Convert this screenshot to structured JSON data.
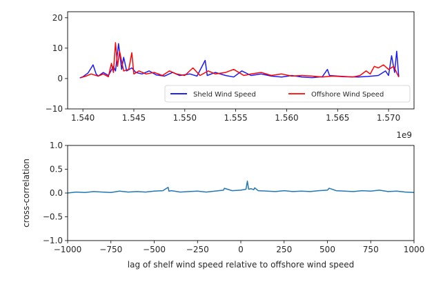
{
  "chart_data": [
    {
      "type": "line",
      "title": "",
      "xlabel": "",
      "ylabel": "",
      "x_offset_label": "1e9",
      "xlim": [
        1.5385,
        1.5725
      ],
      "ylim": [
        -10,
        22
      ],
      "xticks": [
        1.54,
        1.545,
        1.55,
        1.555,
        1.56,
        1.565,
        1.57
      ],
      "xtick_labels": [
        "1.540",
        "1.545",
        "1.550",
        "1.555",
        "1.560",
        "1.565",
        "1.570"
      ],
      "yticks": [
        -10,
        0,
        10,
        20
      ],
      "ytick_labels": [
        "−10",
        "0",
        "10",
        "20"
      ],
      "legend_position": "lower-right",
      "series": [
        {
          "name": "Sheld Wind Speed",
          "color": "#0000ff",
          "x": [
            1.5397,
            1.54,
            1.5405,
            1.541,
            1.5413,
            1.5415,
            1.542,
            1.5425,
            1.543,
            1.5432,
            1.5435,
            1.5438,
            1.544,
            1.5443,
            1.5448,
            1.5452,
            1.5458,
            1.5465,
            1.5472,
            1.548,
            1.5488,
            1.5495,
            1.5505,
            1.5512,
            1.552,
            1.5522,
            1.553,
            1.554,
            1.5548,
            1.5556,
            1.5565,
            1.5575,
            1.5585,
            1.5595,
            1.5605,
            1.5615,
            1.5625,
            1.5635,
            1.564,
            1.5642,
            1.565,
            1.566,
            1.567,
            1.568,
            1.569,
            1.5697,
            1.57,
            1.5703,
            1.5706,
            1.5708,
            1.571
          ],
          "values": [
            0.2,
            0.6,
            1.8,
            4.5,
            1.5,
            0.8,
            2.0,
            1.0,
            4.0,
            2.5,
            11.5,
            3.0,
            7.0,
            2.5,
            3.5,
            2.0,
            1.5,
            2.5,
            1.2,
            0.8,
            2.0,
            1.0,
            1.5,
            0.8,
            6.0,
            1.0,
            2.0,
            1.0,
            0.5,
            2.5,
            1.0,
            1.5,
            0.8,
            0.5,
            1.0,
            0.5,
            0.3,
            0.6,
            3.0,
            1.0,
            0.8,
            0.6,
            0.5,
            0.7,
            1.0,
            2.5,
            1.0,
            7.5,
            2.0,
            9.0,
            0.5
          ]
        },
        {
          "name": "Offshore Wind Speed",
          "color": "#ff0000",
          "x": [
            1.5398,
            1.5403,
            1.5408,
            1.5415,
            1.542,
            1.5425,
            1.5428,
            1.543,
            1.5432,
            1.5434,
            1.5436,
            1.544,
            1.5445,
            1.5448,
            1.545,
            1.5455,
            1.5462,
            1.547,
            1.5478,
            1.5485,
            1.5492,
            1.55,
            1.5508,
            1.5515,
            1.5523,
            1.553,
            1.554,
            1.5548,
            1.5558,
            1.5565,
            1.5575,
            1.5585,
            1.5595,
            1.5605,
            1.5615,
            1.5625,
            1.5635,
            1.5645,
            1.5655,
            1.5665,
            1.5672,
            1.5678,
            1.5682,
            1.5686,
            1.569,
            1.5695,
            1.57,
            1.5705,
            1.571
          ],
          "values": [
            0.3,
            0.8,
            1.5,
            0.8,
            1.5,
            0.6,
            5.0,
            2.0,
            11.8,
            4.0,
            9.0,
            2.5,
            3.0,
            8.5,
            1.5,
            2.5,
            1.5,
            2.0,
            1.0,
            2.5,
            1.5,
            1.0,
            3.5,
            1.0,
            2.5,
            1.5,
            2.0,
            3.0,
            1.0,
            1.5,
            2.0,
            1.0,
            1.5,
            0.8,
            1.0,
            0.8,
            0.5,
            0.8,
            0.6,
            0.5,
            1.0,
            2.5,
            1.5,
            4.0,
            3.5,
            4.5,
            3.0,
            4.0,
            0.5
          ]
        }
      ]
    },
    {
      "type": "line",
      "title": "",
      "xlabel": "lag of shelf wind speed relative to offshore wind speed",
      "ylabel": "cross-correlation",
      "xlim": [
        -1000,
        1000
      ],
      "ylim": [
        -1.0,
        1.0
      ],
      "xticks": [
        -1000,
        -750,
        -500,
        -250,
        0,
        250,
        500,
        750,
        1000
      ],
      "xtick_labels": [
        "−1000",
        "−750",
        "−500",
        "−250",
        "0",
        "250",
        "500",
        "750",
        "1000"
      ],
      "yticks": [
        -1.0,
        -0.5,
        0.0,
        0.5,
        1.0
      ],
      "ytick_labels": [
        "−1.0",
        "−0.5",
        "0.0",
        "0.5",
        "1.0"
      ],
      "series": [
        {
          "color": "#1f77b4",
          "x": [
            -1000,
            -950,
            -900,
            -850,
            -800,
            -750,
            -700,
            -650,
            -600,
            -550,
            -500,
            -450,
            -420,
            -415,
            -400,
            -350,
            -300,
            -250,
            -200,
            -150,
            -100,
            -95,
            -50,
            0,
            30,
            38,
            45,
            60,
            75,
            80,
            100,
            150,
            200,
            250,
            300,
            350,
            400,
            450,
            500,
            510,
            550,
            600,
            650,
            700,
            750,
            800,
            850,
            900,
            950,
            1000
          ],
          "values": [
            0.0,
            0.02,
            0.01,
            0.03,
            0.02,
            0.01,
            0.04,
            0.02,
            0.03,
            0.02,
            0.04,
            0.05,
            0.12,
            0.04,
            0.05,
            0.02,
            0.03,
            0.04,
            0.02,
            0.04,
            0.06,
            0.1,
            0.05,
            0.06,
            0.08,
            0.25,
            0.08,
            0.09,
            0.07,
            0.11,
            0.05,
            0.04,
            0.03,
            0.05,
            0.03,
            0.04,
            0.03,
            0.05,
            0.06,
            0.1,
            0.05,
            0.04,
            0.03,
            0.05,
            0.04,
            0.06,
            0.03,
            0.04,
            0.02,
            0.01
          ]
        }
      ]
    }
  ]
}
